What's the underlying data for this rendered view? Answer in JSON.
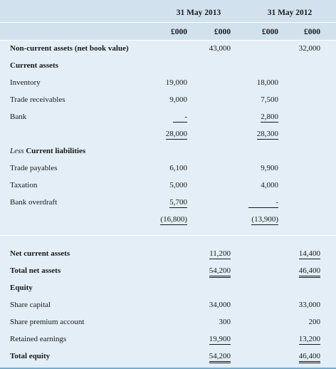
{
  "header": {
    "period_2013": "31 May 2013",
    "period_2012": "31 May 2012",
    "units": [
      "£000",
      "£000",
      "£000",
      "£000"
    ]
  },
  "rows": {
    "non_current": {
      "label": "Non-current assets (net book value)",
      "c2": "43,000",
      "c4": "32,000"
    },
    "current_assets": {
      "label": "Current assets"
    },
    "inventory": {
      "label": "Inventory",
      "c1": "19,000",
      "c3": "18,000"
    },
    "trade_receivables": {
      "label": "Trade receivables",
      "c1": "9,000",
      "c3": "7,500"
    },
    "bank": {
      "label": "Bank",
      "c1": "-",
      "c3": "2,800"
    },
    "ca_total": {
      "c1": "28,000",
      "c3": "28,300"
    },
    "less_current_liabilities": {
      "label_prefix": "Less",
      "label": "Current liabilities"
    },
    "trade_payables": {
      "label": "Trade payables",
      "c1": "6,100",
      "c3": "9,900"
    },
    "taxation": {
      "label": "Taxation",
      "c1": "5,000",
      "c3": "4,000"
    },
    "bank_overdraft": {
      "label": "Bank overdraft",
      "c1": "5,700",
      "c3": "-"
    },
    "cl_total": {
      "c1": "(16,800)",
      "c3": "(13,900)"
    },
    "net_current_assets": {
      "label": "Net current assets",
      "c2": "11,200",
      "c4": "14,400"
    },
    "total_net_assets": {
      "label": "Total net assets",
      "c2": "54,200",
      "c4": "46,400"
    },
    "equity": {
      "label": "Equity"
    },
    "share_capital": {
      "label": "Share capital",
      "c2": "34,000",
      "c4": "33,000"
    },
    "share_premium": {
      "label": "Share premium account",
      "c2": "300",
      "c4": "200"
    },
    "retained_earnings": {
      "label": "Retained earnings",
      "c2": "19,900",
      "c4": "13,200"
    },
    "total_equity": {
      "label": "Total equity",
      "c2": "54,200",
      "c4": "46,400"
    }
  },
  "colors": {
    "background": "#e3eef6",
    "header_band": "#d1e2ee",
    "rule": "#ffffff",
    "border": "#7aaccc"
  }
}
